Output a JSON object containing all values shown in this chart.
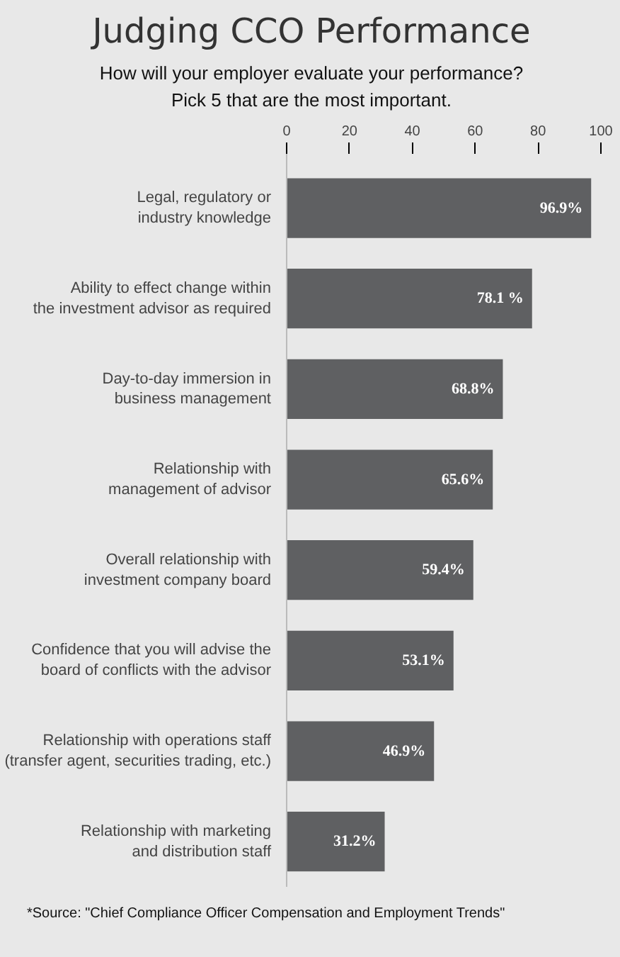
{
  "chart_data": {
    "type": "bar",
    "orientation": "horizontal",
    "title": "Judging CCO Performance",
    "subtitle": "How will your employer evaluate your performance?\nPick 5 that are the most important.",
    "categories": [
      "Legal, regulatory or\nindustry knowledge",
      "Ability to effect change within\nthe investment advisor as required",
      "Day-to-day immersion in\nbusiness management",
      "Relationship with\nmanagement of advisor",
      "Overall relationship with\ninvestment company board",
      "Confidence that you will advise the\nboard of conflicts with the advisor",
      "Relationship with operations staff\n(transfer agent, securities trading, etc.)",
      "Relationship with marketing\nand distribution staff"
    ],
    "values": [
      96.9,
      78.1,
      68.8,
      65.6,
      59.4,
      53.1,
      46.9,
      31.2
    ],
    "value_labels": [
      "96.9%",
      "78.1 %",
      "68.8%",
      "65.6%",
      "59.4%",
      "53.1%",
      "46.9%",
      "31.2%"
    ],
    "color": "#5f6062",
    "xlim": [
      0,
      100
    ],
    "xticks": [
      0,
      20,
      40,
      60,
      80,
      100
    ],
    "grid": false,
    "annotations": [
      "*Source: \"Chief Compliance Officer Compensation and Employment Trends\""
    ]
  }
}
